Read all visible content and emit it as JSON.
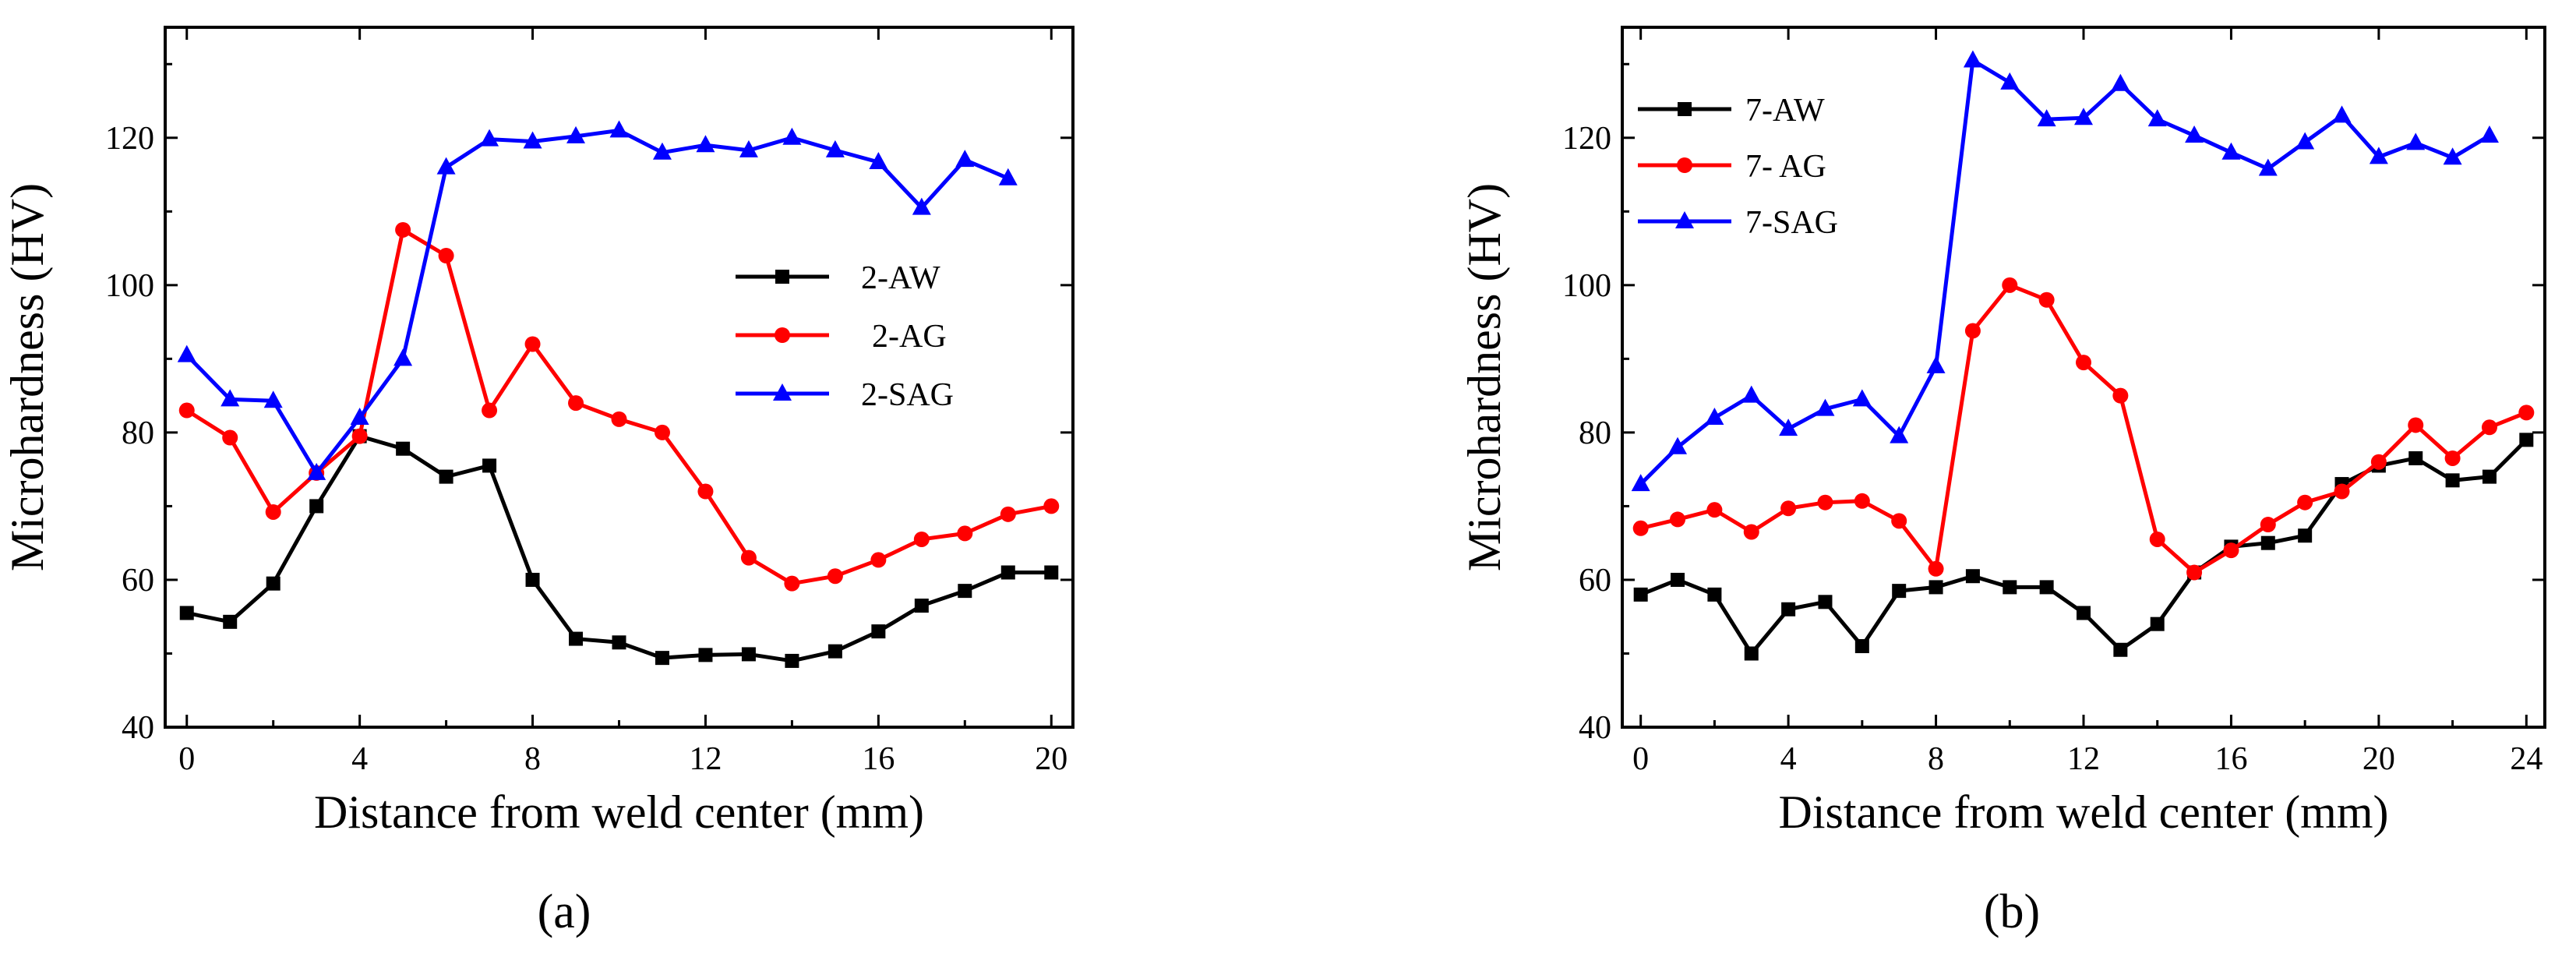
{
  "chart_data": [
    {
      "type": "line",
      "panel_label": "(a)",
      "title": "",
      "xlabel": "Distance from weld center (mm)",
      "ylabel": "Microhardness (HV)",
      "xlim": [
        -0.5,
        20.5
      ],
      "ylim": [
        40,
        135
      ],
      "xticks": [
        0,
        4,
        8,
        12,
        16,
        20
      ],
      "yticks": [
        40,
        60,
        80,
        100,
        120
      ],
      "grid": false,
      "legend": "center-right",
      "x": [
        0,
        1,
        2,
        3,
        4,
        5,
        6,
        7,
        8,
        9,
        10,
        11,
        12,
        13,
        14,
        15,
        16,
        17,
        18,
        19,
        20
      ],
      "series": [
        {
          "name": "2-AW",
          "color": "#000000",
          "marker": "square",
          "values": [
            55.5,
            54.3,
            59.5,
            70,
            79.5,
            77.8,
            74,
            75.5,
            60,
            52,
            51.5,
            49.4,
            49.8,
            49.9,
            49,
            50.3,
            53,
            56.5,
            58.5,
            61,
            61
          ]
        },
        {
          "name": "2-AG",
          "color": "#ff0000",
          "marker": "circle",
          "values": [
            83,
            79.3,
            69.2,
            74.5,
            79.5,
            107.5,
            104,
            83,
            92,
            84,
            81.8,
            80,
            72,
            63,
            59.5,
            60.5,
            62.7,
            65.5,
            66.3,
            68.9,
            70
          ]
        },
        {
          "name": "2-SAG",
          "color": "#0000ff",
          "marker": "triangle",
          "values": [
            90.5,
            84.5,
            84.3,
            74.5,
            82,
            90,
            116,
            119.8,
            119.5,
            120.2,
            121,
            118,
            119,
            118.3,
            120,
            118.3,
            116.7,
            110.5,
            117,
            114.5,
            null
          ]
        }
      ]
    },
    {
      "type": "line",
      "panel_label": "(b)",
      "title": "",
      "xlabel": "Distance from weld center (mm)",
      "ylabel": "Microhardness (HV)",
      "xlim": [
        -0.5,
        24.5
      ],
      "ylim": [
        40,
        135
      ],
      "xticks": [
        0,
        4,
        8,
        12,
        16,
        20,
        24
      ],
      "yticks": [
        40,
        60,
        80,
        100,
        120
      ],
      "grid": false,
      "legend": "top-left",
      "x": [
        0,
        1,
        2,
        3,
        4,
        5,
        6,
        7,
        8,
        9,
        10,
        11,
        12,
        13,
        14,
        15,
        16,
        17,
        18,
        19,
        20,
        21,
        22,
        23,
        24
      ],
      "series": [
        {
          "name": "7-AW",
          "color": "#000000",
          "marker": "square",
          "values": [
            58,
            60,
            58,
            50,
            56,
            57,
            51,
            58.5,
            59,
            60.5,
            59,
            59,
            55.5,
            50.5,
            54,
            61,
            64.5,
            65,
            66,
            73,
            75.5,
            76.5,
            73.5,
            74,
            79
          ]
        },
        {
          "name": "7- AG",
          "color": "#ff0000",
          "marker": "circle",
          "values": [
            67,
            68.2,
            69.5,
            66.5,
            69.7,
            70.5,
            70.7,
            68,
            61.5,
            93.8,
            100,
            98,
            89.5,
            85,
            65.5,
            61,
            64,
            67.5,
            70.5,
            72,
            76,
            81,
            76.5,
            80.7,
            82.7
          ]
        },
        {
          "name": "7-SAG",
          "color": "#0000ff",
          "marker": "triangle",
          "values": [
            73,
            78,
            82,
            85,
            80.5,
            83.2,
            84.5,
            79.5,
            89,
            130.5,
            127.5,
            122.5,
            122.7,
            127.3,
            122.5,
            120.3,
            118,
            115.8,
            119.4,
            123,
            117.4,
            119.3,
            117.3,
            120.3,
            null
          ]
        }
      ]
    }
  ]
}
